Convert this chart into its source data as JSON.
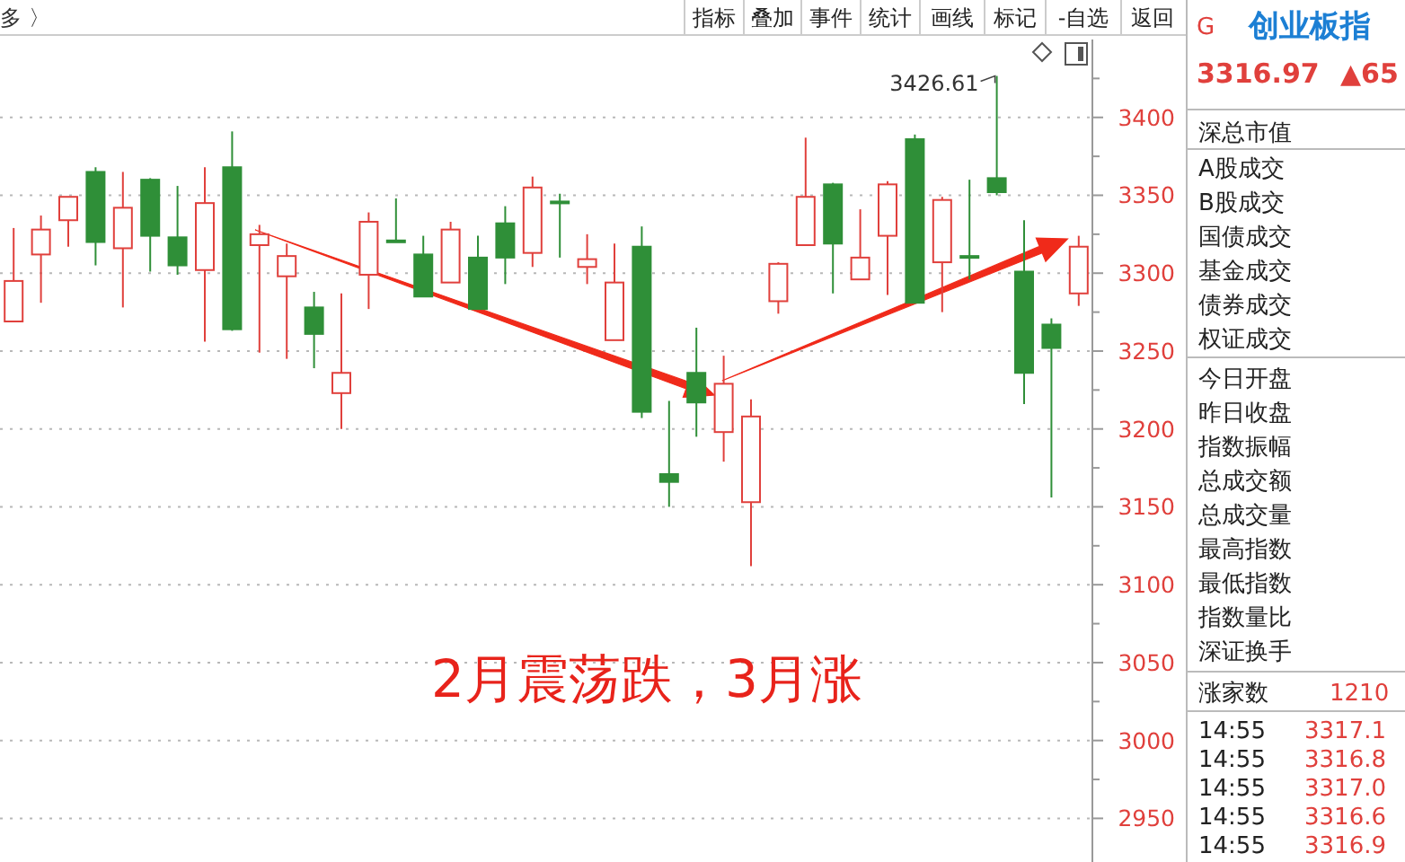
{
  "chart_data": [
    {
      "type": "candlestick",
      "categories": [
        null,
        null,
        null,
        null,
        null,
        null,
        null,
        null,
        null,
        null,
        null,
        null,
        null,
        null,
        null,
        null,
        null,
        null,
        null,
        null,
        null,
        null,
        null,
        null,
        null,
        null,
        null,
        null,
        null,
        null,
        null,
        null,
        null,
        null,
        null,
        null,
        null,
        null,
        null,
        null
      ],
      "ohlc": [
        [
          3269,
          3329,
          3269,
          3295
        ],
        [
          3312,
          3337,
          3281,
          3328
        ],
        [
          3334,
          3349,
          3317,
          3349
        ],
        [
          3365,
          3368,
          3305,
          3320
        ],
        [
          3316,
          3365,
          3278,
          3342
        ],
        [
          3360,
          3361,
          3301,
          3324
        ],
        [
          3323,
          3356,
          3299,
          3305
        ],
        [
          3302,
          3368,
          3256,
          3345
        ],
        [
          3368,
          3391,
          3263,
          3264
        ],
        [
          3318,
          3331,
          3249,
          3325
        ],
        [
          3298,
          3319,
          3245,
          3311
        ],
        [
          3278,
          3288,
          3239,
          3261
        ],
        [
          3223,
          3287,
          3200,
          3236
        ],
        [
          3299,
          3339,
          3277,
          3333
        ],
        [
          3321,
          3348,
          3320,
          3320
        ],
        [
          3312,
          3324,
          3285,
          3285
        ],
        [
          3294,
          3333,
          3294,
          3328
        ],
        [
          3310,
          3324,
          3277,
          3277
        ],
        [
          3332,
          3343,
          3293,
          3310
        ],
        [
          3313,
          3362,
          3304,
          3355
        ],
        [
          3346,
          3351,
          3310,
          3345
        ],
        [
          3304,
          3325,
          3293,
          3309
        ],
        [
          3257,
          3319,
          3257,
          3294
        ],
        [
          3317,
          3330,
          3207,
          3211
        ],
        [
          3171,
          3218,
          3150,
          3166
        ],
        [
          3236,
          3265,
          3195,
          3217
        ],
        [
          3198,
          3247,
          3179,
          3229
        ],
        [
          3153,
          3219,
          3112,
          3208
        ],
        [
          3282,
          3307,
          3274,
          3306
        ],
        [
          3318,
          3387,
          3318,
          3349
        ],
        [
          3357,
          3358,
          3287,
          3319
        ],
        [
          3296,
          3341,
          3296,
          3310
        ],
        [
          3324,
          3359,
          3286,
          3357
        ],
        [
          3386,
          3389,
          3281,
          3281
        ],
        [
          3307,
          3349,
          3275,
          3347
        ],
        [
          3311,
          3360,
          3296,
          3310
        ],
        [
          3361,
          3426.61,
          3350,
          3352
        ],
        [
          3301,
          3334,
          3216,
          3236
        ],
        [
          3267,
          3271,
          3156,
          3252
        ],
        [
          3287,
          3324,
          3279,
          3317
        ]
      ],
      "colors": [
        "#e0403c",
        "#e0403c",
        "#e0403c",
        "#2f8f38",
        "#e0403c",
        "#2f8f38",
        "#2f8f38",
        "#e0403c",
        "#2f8f38",
        "#e0403c",
        "#e0403c",
        "#2f8f38",
        "#e0403c",
        "#e0403c",
        "#2f8f38",
        "#2f8f38",
        "#e0403c",
        "#2f8f38",
        "#2f8f38",
        "#e0403c",
        "#2f8f38",
        "#e0403c",
        "#e0403c",
        "#2f8f38",
        "#2f8f38",
        "#2f8f38",
        "#e0403c",
        "#e0403c",
        "#e0403c",
        "#e0403c",
        "#2f8f38",
        "#e0403c",
        "#e0403c",
        "#2f8f38",
        "#e0403c",
        "#2f8f38",
        "#2f8f38",
        "#2f8f38",
        "#2f8f38",
        "#e0403c"
      ],
      "ylim": [
        2922,
        3450
      ],
      "yticks": [
        2950,
        {
          "value": 2975,
          "label": null
        },
        3000,
        {
          "value": 3025,
          "label": null
        },
        3050,
        {
          "value": 3075,
          "label": null
        },
        3100,
        {
          "value": 3125,
          "label": null
        },
        3150,
        {
          "value": 3175,
          "label": null
        },
        3200,
        {
          "value": 3225,
          "label": null
        },
        3250,
        {
          "value": 3275,
          "label": null
        },
        3300,
        {
          "value": 3325,
          "label": null
        },
        3350,
        {
          "value": 3375,
          "label": null
        },
        3400,
        {
          "value": 3425,
          "label": null
        }
      ],
      "grid": "y",
      "annotations": [
        "3426.61",
        "2月震荡跌，3月涨"
      ]
    },
    {
      "type": "other",
      "annotations": [
        "多 〉",
        "指标",
        "叠加",
        "事件",
        "统计",
        "画线",
        "标记",
        "-自选",
        "返回"
      ]
    },
    {
      "type": "other",
      "annotations": [
        "G",
        "创业板指",
        "3316.97",
        "▲65",
        "深总市值",
        "A股成交",
        "B股成交",
        "国债成交",
        "基金成交",
        "债券成交",
        "权证成交",
        "今日开盘",
        "昨日收盘",
        "指数振幅",
        "总成交额",
        "总成交量",
        "最高指数",
        "最低指数",
        "指数量比",
        "深证换手",
        "涨家数",
        "1210",
        "14:55",
        "3317.1",
        "14:55",
        "3316.8",
        "14:55",
        "3317.0",
        "14:55",
        "3316.6",
        "14:55",
        "3316.9"
      ]
    }
  ]
}
